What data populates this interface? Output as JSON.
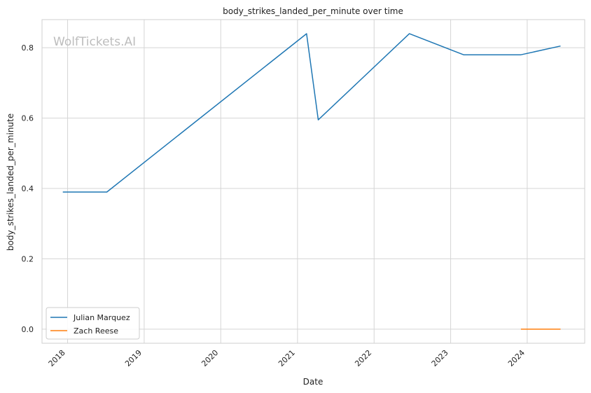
{
  "chart_data": {
    "type": "line",
    "title": "body_strikes_landed_per_minute over time",
    "xlabel": "Date",
    "ylabel": "body_strikes_landed_per_minute",
    "watermark": "WolfTickets.AI",
    "x_axis_type": "date",
    "xlim": [
      "2017-09-01",
      "2024-10-01"
    ],
    "ylim": [
      -0.04,
      0.88
    ],
    "x_ticks": [
      "2018",
      "2019",
      "2020",
      "2021",
      "2022",
      "2023",
      "2024"
    ],
    "y_ticks": [
      "0.0",
      "0.2",
      "0.4",
      "0.6",
      "0.8"
    ],
    "grid": true,
    "legend_position": "lower-left",
    "series": [
      {
        "name": "Julian Marquez",
        "color": "#1f77b4",
        "x": [
          "2017-12-09",
          "2018-07-07",
          "2021-02-13",
          "2021-04-10",
          "2022-06-18",
          "2023-03-04",
          "2023-12-02",
          "2024-06-08"
        ],
        "y": [
          0.39,
          0.39,
          0.84,
          0.595,
          0.84,
          0.78,
          0.78,
          0.805
        ]
      },
      {
        "name": "Zach Reese",
        "color": "#ff7f0e",
        "x": [
          "2023-12-02",
          "2024-06-08"
        ],
        "y": [
          0.0,
          0.0
        ]
      }
    ]
  }
}
